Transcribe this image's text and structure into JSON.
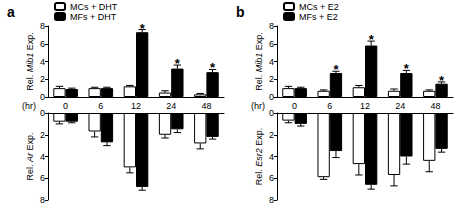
{
  "chart_data": [
    {
      "type": "bar",
      "title": "a",
      "categories": [
        "0",
        "6",
        "12",
        "24",
        "48"
      ],
      "xlabel": "(hr)",
      "ylabel": "Rel. Mib1 Exp.",
      "ylim": [
        0,
        8
      ],
      "yticks": [
        0,
        2,
        4,
        6,
        8
      ],
      "grid": false,
      "legend": "upper left",
      "series": [
        {
          "name": "MCs + DHT",
          "color": "#ffffff",
          "values": [
            1.0,
            1.0,
            1.2,
            0.5,
            0.3
          ],
          "errors": [
            0.2,
            0.1,
            0.1,
            0.2,
            0.1
          ]
        },
        {
          "name": "MFs + DHT",
          "color": "#000000",
          "values": [
            0.9,
            1.0,
            7.3,
            3.2,
            2.8
          ],
          "errors": [
            0.1,
            0.1,
            0.3,
            0.4,
            0.3
          ]
        }
      ],
      "annotations": [
        {
          "text": "*",
          "category": "12",
          "series": "MFs + DHT"
        },
        {
          "text": "*",
          "category": "24",
          "series": "MFs + DHT"
        },
        {
          "text": "*",
          "category": "48",
          "series": "MFs + DHT"
        }
      ]
    },
    {
      "type": "bar",
      "categories": [
        "0",
        "6",
        "12",
        "24",
        "48"
      ],
      "ylabel": "Rel. Ar Exp.",
      "ylim": [
        8,
        0
      ],
      "yticks": [
        0,
        2,
        4,
        6,
        8
      ],
      "grid": false,
      "tick_labels": "y",
      "series": [
        {
          "color": "#ffffff",
          "values": [
            0.8,
            1.7,
            5.0,
            2.0,
            2.8
          ],
          "errors": [
            0.2,
            0.5,
            0.5,
            0.3,
            0.5
          ]
        },
        {
          "color": "#000000",
          "values": [
            0.8,
            2.7,
            6.8,
            1.5,
            2.2
          ],
          "errors": [
            0.1,
            0.3,
            0.3,
            0.3,
            0.2
          ]
        }
      ]
    },
    {
      "type": "bar",
      "title": "b",
      "categories": [
        "0",
        "6",
        "12",
        "24",
        "48"
      ],
      "xlabel": "(hr)",
      "ylabel": "Rel. Mib1 Exp.",
      "ylim": [
        0,
        8
      ],
      "yticks": [
        0,
        2,
        4,
        6,
        8
      ],
      "grid": false,
      "legend": "upper left",
      "series": [
        {
          "name": "MCs + E2",
          "color": "#ffffff",
          "values": [
            1.0,
            0.7,
            1.1,
            0.7,
            0.7
          ],
          "errors": [
            0.2,
            0.1,
            0.2,
            0.2,
            0.1
          ]
        },
        {
          "name": "MFs + E2",
          "color": "#000000",
          "values": [
            1.0,
            2.7,
            5.8,
            2.7,
            1.5
          ],
          "errors": [
            0.1,
            0.2,
            0.5,
            0.3,
            0.2
          ]
        }
      ],
      "annotations": [
        {
          "text": "*",
          "category": "6",
          "series": "MFs + E2"
        },
        {
          "text": "*",
          "category": "12",
          "series": "MFs + E2"
        },
        {
          "text": "*",
          "category": "24",
          "series": "MFs + E2"
        },
        {
          "text": "*",
          "category": "48",
          "series": "MFs + E2"
        }
      ]
    },
    {
      "type": "bar",
      "categories": [
        "0",
        "6",
        "12",
        "24",
        "48"
      ],
      "ylabel": "Rel. Esr2 Exp.",
      "ylim": [
        8,
        0
      ],
      "yticks": [
        0,
        2,
        4,
        6,
        8
      ],
      "grid": false,
      "tick_labels": "y",
      "series": [
        {
          "color": "#ffffff",
          "values": [
            0.7,
            5.9,
            4.7,
            5.7,
            4.4
          ],
          "errors": [
            0.2,
            0.2,
            1.0,
            1.0,
            1.0
          ]
        },
        {
          "color": "#000000",
          "values": [
            1.0,
            3.5,
            6.6,
            4.0,
            3.3
          ],
          "errors": [
            0.2,
            0.6,
            0.4,
            0.7,
            0.3
          ]
        }
      ]
    }
  ]
}
